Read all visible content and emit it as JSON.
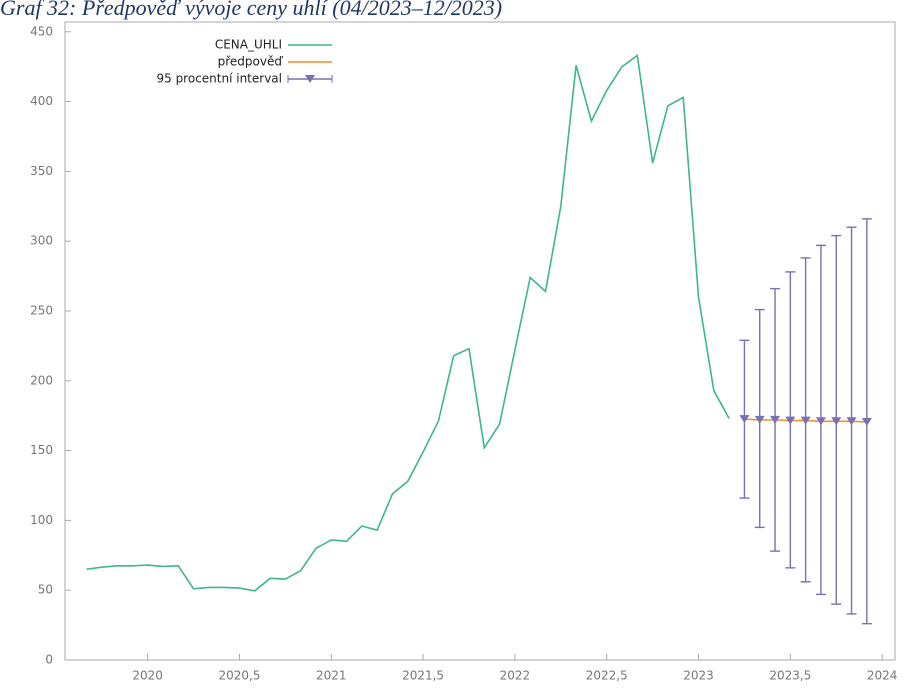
{
  "chart_data": {
    "type": "line",
    "title": "Graf 32: Předpověď vývoje ceny uhlí (04/2023–12/2023)",
    "xlim": [
      2019.55,
      2024.07
    ],
    "ylim": [
      0,
      457
    ],
    "xticks": [
      2020,
      {
        "value": 2020.5,
        "label": "2020,5"
      },
      2021,
      {
        "value": 2021.5,
        "label": "2021,5"
      },
      2022,
      {
        "value": 2022.5,
        "label": "2022,5"
      },
      2023,
      {
        "value": 2023.5,
        "label": "2023,5"
      },
      2024
    ],
    "yticks": [
      0,
      50,
      100,
      150,
      200,
      250,
      300,
      350,
      400,
      450
    ],
    "legend": "top-left",
    "series": [
      {
        "name": "CENA_UHLI",
        "color": "#3fb68b",
        "x": [
          2019.6667,
          2019.75,
          2019.8333,
          2019.9167,
          2020,
          2020.0833,
          2020.1667,
          2020.25,
          2020.3333,
          2020.4167,
          2020.5,
          2020.5833,
          2020.6667,
          2020.75,
          2020.8333,
          2020.9167,
          2021,
          2021.0833,
          2021.1667,
          2021.25,
          2021.3333,
          2021.4167,
          2021.5,
          2021.5833,
          2021.6667,
          2021.75,
          2021.8333,
          2021.9167,
          2022,
          2022.0833,
          2022.1667,
          2022.25,
          2022.3333,
          2022.4167,
          2022.5,
          2022.5833,
          2022.6667,
          2022.75,
          2022.8333,
          2022.9167,
          2023,
          2023.0833,
          2023.1667
        ],
        "values": [
          65,
          66.5,
          67.5,
          67.5,
          68,
          67,
          67.5,
          51,
          52,
          52,
          51.5,
          49.5,
          58.5,
          58,
          64,
          80,
          86,
          85,
          96,
          93,
          119,
          128,
          149,
          171,
          218,
          223,
          152,
          169,
          222,
          274,
          264,
          325,
          426,
          386,
          408,
          425,
          433,
          356,
          397,
          403,
          260,
          193,
          173
        ]
      },
      {
        "name": "předpověď",
        "color": "#f28e2b",
        "x": [
          2023.25,
          2023.3333,
          2023.4167,
          2023.5,
          2023.5833,
          2023.6667,
          2023.75,
          2023.8333,
          2023.9167
        ],
        "values": [
          172.5,
          172,
          172,
          171.5,
          171.5,
          171,
          171,
          171,
          170.5
        ]
      },
      {
        "name": "95 procentní interval",
        "color": "#7b6fb6",
        "lower": [
          116,
          95,
          78,
          66,
          56,
          47,
          40,
          33,
          26
        ],
        "upper": [
          229,
          251,
          266,
          278,
          288,
          297,
          304,
          310,
          316
        ]
      }
    ]
  }
}
